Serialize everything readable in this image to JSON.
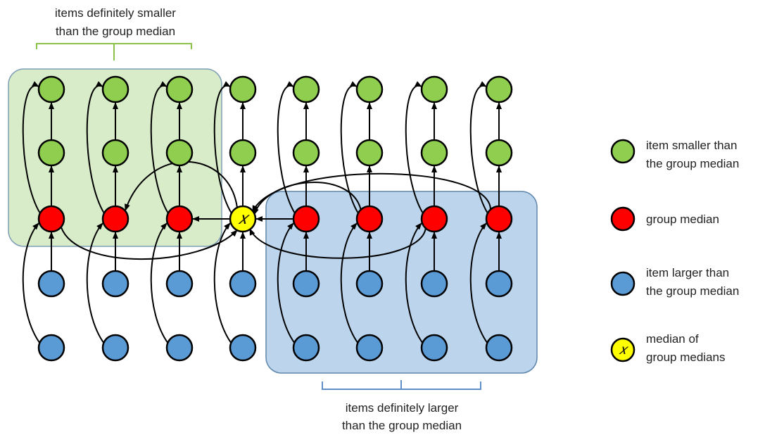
{
  "regions": {
    "smaller": {
      "label_line1": "items definitely smaller",
      "label_line2": "than the group median",
      "fill": "#d9ecc9",
      "stroke": "#7f9fb5",
      "brace": "#8bc34a"
    },
    "larger": {
      "label_line1": "items definitely larger",
      "label_line2": "than the group median",
      "fill": "#bcd4ec",
      "stroke": "#5f86ab",
      "brace": "#5f8fc7"
    }
  },
  "colors": {
    "smaller": "#8fce4f",
    "median": "#ff0000",
    "larger": "#5b9bd5",
    "pivot": "#ffff00",
    "stroke": "#000000"
  },
  "pivot_symbol": "𝑥",
  "legend": [
    {
      "kind": "smaller",
      "line1": "item smaller than",
      "line2": "the group median"
    },
    {
      "kind": "median",
      "line1": "group median",
      "line2": ""
    },
    {
      "kind": "larger",
      "line1": "item larger than",
      "line2": "the group median"
    },
    {
      "kind": "pivot",
      "line1": "median of",
      "line2": "group medians"
    }
  ]
}
